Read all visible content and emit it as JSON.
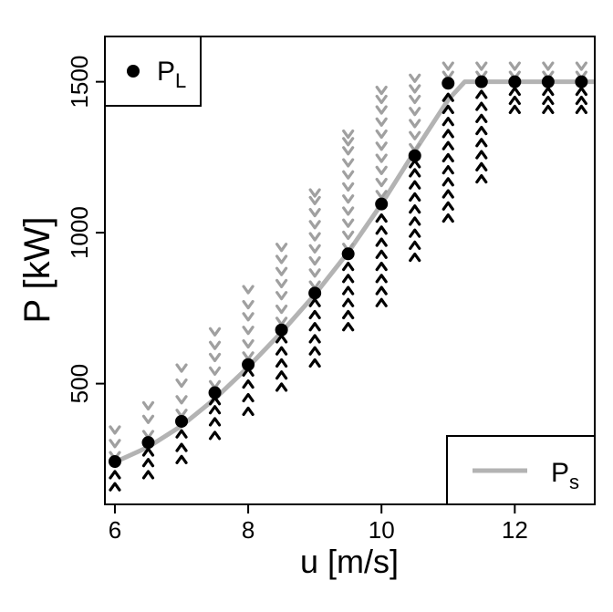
{
  "chart_data": {
    "type": "scatter",
    "xlabel": "u [m/s]",
    "ylabel": "P [kW]",
    "xlim": [
      5.85,
      13.2
    ],
    "ylim": [
      100,
      1650
    ],
    "xticks": [
      6,
      8,
      10,
      12
    ],
    "yticks": [
      500,
      1000,
      1500
    ],
    "grid": false,
    "legends": [
      {
        "position": "top-left",
        "marker": "filled-circle",
        "label_main": "P",
        "label_sub": "L"
      },
      {
        "position": "bottom-right",
        "marker": "gray-line",
        "label_main": "P",
        "label_sub": "s"
      }
    ],
    "series": [
      {
        "label": "P_L",
        "marker": "filled-circle",
        "color": "#000000",
        "x": [
          6,
          6.5,
          7,
          7.5,
          8,
          8.5,
          9,
          9.5,
          10,
          10.5,
          11,
          11.5,
          12,
          12.5,
          13
        ],
        "y": [
          242,
          305,
          375,
          470,
          563,
          678,
          800,
          930,
          1095,
          1255,
          1495,
          1500,
          1500,
          1500,
          1500
        ]
      },
      {
        "label": "P_s",
        "style": "line",
        "color": "#b3b3b3",
        "x": [
          6,
          6.5,
          7,
          7.5,
          8,
          8.5,
          9,
          9.5,
          10,
          10.5,
          11,
          11.25,
          11.5,
          12,
          12.5,
          13,
          13.2
        ],
        "y": [
          240,
          290,
          360,
          450,
          555,
          670,
          795,
          935,
          1095,
          1270,
          1440,
          1500,
          1500,
          1500,
          1500,
          1500,
          1500
        ]
      }
    ],
    "upper_bound_markers": {
      "marker": "downward-chevron",
      "color": "#a0a0a0",
      "groups": [
        {
          "x": 6,
          "y": [
            260,
            300,
            345
          ]
        },
        {
          "x": 6.5,
          "y": [
            330,
            380,
            425
          ]
        },
        {
          "x": 7,
          "y": [
            400,
            445,
            500,
            550
          ]
        },
        {
          "x": 7.5,
          "y": [
            495,
            540,
            585,
            625,
            670
          ]
        },
        {
          "x": 8,
          "y": [
            590,
            630,
            675,
            720,
            760,
            810
          ]
        },
        {
          "x": 8.5,
          "y": [
            705,
            745,
            790,
            830,
            870,
            910,
            950
          ]
        },
        {
          "x": 9,
          "y": [
            825,
            865,
            905,
            945,
            985,
            1025,
            1065,
            1105,
            1130
          ]
        },
        {
          "x": 9.5,
          "y": [
            950,
            990,
            1030,
            1070,
            1110,
            1150,
            1190,
            1230,
            1270,
            1300,
            1325
          ]
        },
        {
          "x": 10,
          "y": [
            1125,
            1165,
            1205,
            1245,
            1285,
            1325,
            1365,
            1405,
            1440,
            1470
          ]
        },
        {
          "x": 10.5,
          "y": [
            1280,
            1320,
            1360,
            1400,
            1440,
            1475,
            1510
          ]
        },
        {
          "x": 11,
          "y": [
            1520,
            1550
          ]
        },
        {
          "x": 11.5,
          "y": [
            1520,
            1550
          ]
        },
        {
          "x": 12,
          "y": [
            1520,
            1550
          ]
        },
        {
          "x": 12.5,
          "y": [
            1520,
            1550
          ]
        },
        {
          "x": 13,
          "y": [
            1520,
            1550
          ]
        }
      ]
    },
    "lower_bound_markers": {
      "marker": "upward-chevron",
      "color": "#000000",
      "groups": [
        {
          "x": 6,
          "y": [
            160,
            200
          ]
        },
        {
          "x": 6.5,
          "y": [
            200,
            240,
            275
          ]
        },
        {
          "x": 7,
          "y": [
            250,
            290,
            335
          ]
        },
        {
          "x": 7.5,
          "y": [
            330,
            375,
            415,
            445
          ]
        },
        {
          "x": 8,
          "y": [
            410,
            455,
            500,
            540
          ]
        },
        {
          "x": 8.5,
          "y": [
            490,
            530,
            570,
            610,
            650
          ]
        },
        {
          "x": 9,
          "y": [
            570,
            610,
            650,
            690,
            730,
            770
          ]
        },
        {
          "x": 9.5,
          "y": [
            690,
            730,
            770,
            810,
            850,
            890
          ]
        },
        {
          "x": 10,
          "y": [
            770,
            810,
            850,
            890,
            930,
            970,
            1010,
            1050
          ]
        },
        {
          "x": 10.5,
          "y": [
            920,
            960,
            1000,
            1040,
            1080,
            1120,
            1160,
            1200,
            1230
          ]
        },
        {
          "x": 11,
          "y": [
            1050,
            1090,
            1130,
            1170,
            1210,
            1250,
            1290,
            1330,
            1370,
            1410,
            1450
          ]
        },
        {
          "x": 11.5,
          "y": [
            1180,
            1220,
            1260,
            1300,
            1340,
            1380,
            1420,
            1460
          ]
        },
        {
          "x": 12,
          "y": [
            1410,
            1440,
            1470
          ]
        },
        {
          "x": 12.5,
          "y": [
            1410,
            1440,
            1470
          ]
        },
        {
          "x": 13,
          "y": [
            1410,
            1440,
            1470
          ]
        }
      ]
    }
  }
}
